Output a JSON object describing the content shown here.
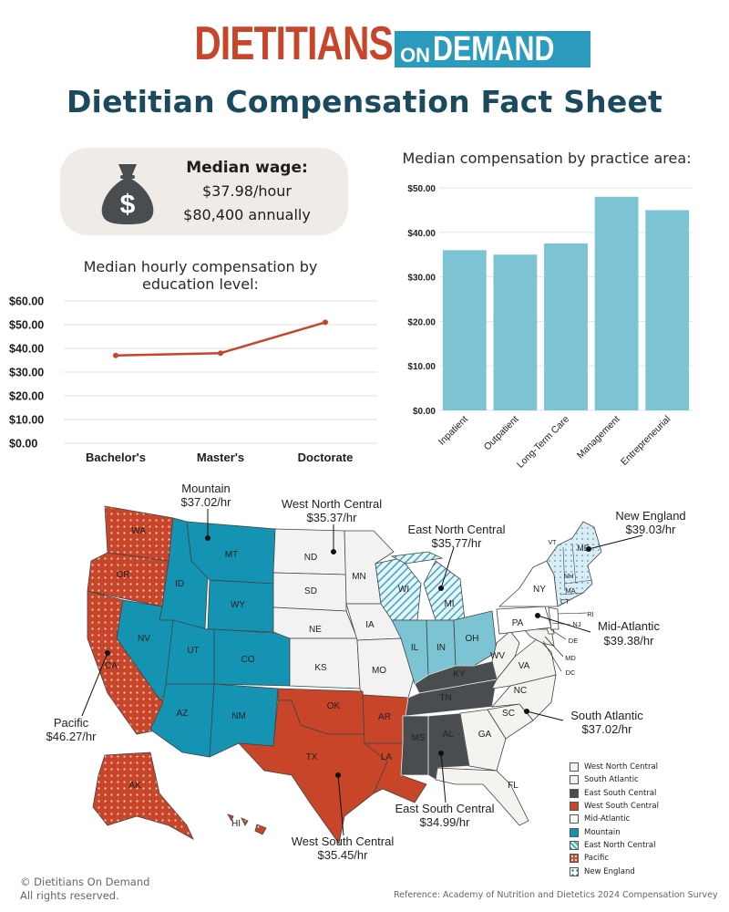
{
  "brand": {
    "word1": "DIETITIANS",
    "on": "ON",
    "word2": "DEMAND"
  },
  "title": "Dietitian Compensation Fact Sheet",
  "median_wage": {
    "label": "Median wage:",
    "hourly": "$37.98/hour",
    "annual": "$80,400 annually",
    "icon": "money-bag-icon"
  },
  "colors": {
    "accent_red": "#c8452a",
    "teal": "#7cc4d3",
    "navy": "#1b4a5e",
    "mountain_teal": "#1493b3",
    "dark_gray": "#4a4d50"
  },
  "chart_data": [
    {
      "type": "bar",
      "title": "Median compensation by practice area:",
      "categories": [
        "Inpatient",
        "Outpatient",
        "Long-Term Care",
        "Management",
        "Entrepreneurial"
      ],
      "values": [
        36.0,
        35.0,
        37.5,
        48.0,
        45.0
      ],
      "yticks": [
        "$50.00",
        "$40.00",
        "$30.00",
        "$20.00",
        "$10.00",
        "$0.00"
      ],
      "ylim": [
        0,
        50
      ],
      "grid": true
    },
    {
      "type": "line",
      "title": "Median hourly compensation by education level:",
      "categories": [
        "Bachelor's",
        "Master's",
        "Doctorate"
      ],
      "values": [
        37.0,
        38.0,
        51.0
      ],
      "yticks": [
        "$60.00",
        "$50.00",
        "$40.00",
        "$30.00",
        "$20.00",
        "$10.00",
        "$0.00"
      ],
      "ylim": [
        0,
        60
      ],
      "grid": true
    }
  ],
  "regions": [
    {
      "name": "Mountain",
      "wage": "$37.02/hr"
    },
    {
      "name": "West North Central",
      "wage": "$35.37/hr"
    },
    {
      "name": "East North Central",
      "wage": "$35.77/hr"
    },
    {
      "name": "New England",
      "wage": "$39.03/hr"
    },
    {
      "name": "Mid-Atlantic",
      "wage": "$39.38/hr"
    },
    {
      "name": "South Atlantic",
      "wage": "$37.02/hr"
    },
    {
      "name": "Pacific",
      "wage": "$46.27/hr"
    },
    {
      "name": "East South Central",
      "wage": "$34.99/hr"
    },
    {
      "name": "West South Central",
      "wage": "$35.45/hr"
    }
  ],
  "states": [
    "WA",
    "OR",
    "CA",
    "AK",
    "HI",
    "ID",
    "MT",
    "WY",
    "NV",
    "UT",
    "CO",
    "AZ",
    "NM",
    "ND",
    "SD",
    "NE",
    "KS",
    "MN",
    "IA",
    "MO",
    "OK",
    "TX",
    "AR",
    "LA",
    "WI",
    "MI",
    "IL",
    "IN",
    "OH",
    "KY",
    "TN",
    "MS",
    "AL",
    "GA",
    "FL",
    "SC",
    "NC",
    "VA",
    "WV",
    "PA",
    "NY",
    "VT",
    "NH",
    "ME",
    "MA",
    "CT",
    "RI",
    "NJ",
    "DE",
    "MD",
    "DC"
  ],
  "legend": [
    "West North Central",
    "South Atlantic",
    "East South Central",
    "West South Central",
    "Mid-Atlantic",
    "Mountain",
    "East North Central",
    "Pacific",
    "New England"
  ],
  "footer": {
    "copyright": "© Dietitians On Demand",
    "rights": "All rights reserved.",
    "reference": "Reference: Academy of Nutrition and Dietetics 2024 Compensation Survey"
  }
}
